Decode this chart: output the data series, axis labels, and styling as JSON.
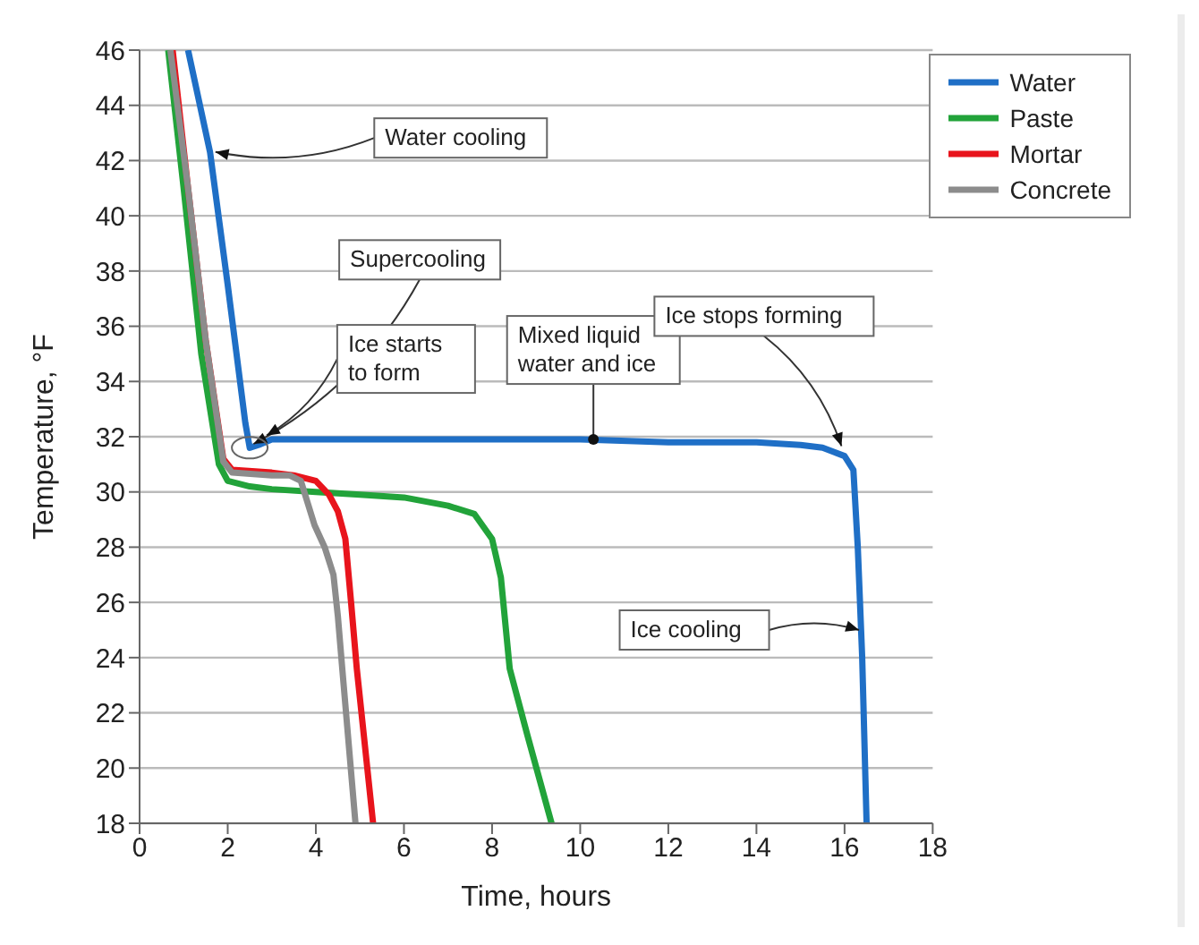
{
  "chart_data": {
    "type": "line",
    "xlabel": "Time, hours",
    "ylabel": "Temperature, °F",
    "xlim": [
      0,
      18
    ],
    "xticks": [
      0,
      2,
      4,
      6,
      8,
      10,
      12,
      14,
      16,
      18
    ],
    "ylim": [
      18,
      46
    ],
    "yticks": [
      18,
      20,
      22,
      24,
      26,
      28,
      30,
      32,
      34,
      36,
      38,
      40,
      42,
      44,
      46
    ],
    "grid": "y",
    "legend": "top right",
    "marker": "none",
    "line_style": "solid",
    "series": [
      {
        "name": "Water",
        "color": "#1f6fc6",
        "x": [
          1.1,
          1.6,
          2.0,
          2.4,
          2.5,
          2.7,
          3,
          4,
          6,
          8,
          10,
          12,
          14,
          15,
          15.5,
          16,
          16.2,
          16.3,
          16.4,
          16.5
        ],
        "values": [
          46,
          42.3,
          37.5,
          32.5,
          31.6,
          31.7,
          31.9,
          31.9,
          31.9,
          31.9,
          31.9,
          31.8,
          31.8,
          31.7,
          31.6,
          31.3,
          30.8,
          28,
          24,
          18
        ]
      },
      {
        "name": "Paste",
        "color": "#22a33a",
        "x": [
          0.65,
          1.0,
          1.4,
          1.8,
          2.0,
          2.5,
          3,
          4,
          5,
          6,
          7,
          7.6,
          8.0,
          8.2,
          8.4,
          8.8,
          9.35
        ],
        "values": [
          46,
          41,
          35,
          31.0,
          30.4,
          30.2,
          30.1,
          30.0,
          29.9,
          29.8,
          29.5,
          29.2,
          28.3,
          26.9,
          23.6,
          21.2,
          18
        ]
      },
      {
        "name": "Mortar",
        "color": "#e8141c",
        "x": [
          0.75,
          1.1,
          1.5,
          1.9,
          2.1,
          3,
          3.5,
          4,
          4.3,
          4.5,
          4.67,
          4.8,
          4.93,
          5.3
        ],
        "values": [
          46,
          41,
          35.5,
          31.2,
          30.8,
          30.7,
          30.6,
          30.4,
          29.9,
          29.3,
          28.3,
          26,
          23.6,
          18
        ]
      },
      {
        "name": "Concrete",
        "color": "#8c8c8c",
        "x": [
          0.7,
          1.1,
          1.5,
          1.9,
          2.1,
          3,
          3.4,
          3.66,
          3.97,
          4.2,
          4.4,
          4.5,
          4.6,
          4.9
        ],
        "values": [
          46,
          41,
          35.5,
          31.1,
          30.7,
          30.6,
          30.6,
          30.4,
          28.8,
          28,
          27.0,
          25.5,
          23.6,
          18
        ]
      }
    ],
    "annotations": [
      {
        "text": "Water cooling",
        "x": 1.6,
        "y": 42.3
      },
      {
        "text": "Supercooling",
        "x": 2.5,
        "y": 31.6
      },
      {
        "text": "Ice starts to form",
        "x": 2.8,
        "y": 31.9
      },
      {
        "text": "Mixed liquid water and ice",
        "x": 10.3,
        "y": 31.9
      },
      {
        "text": "Ice stops forming",
        "x": 16.0,
        "y": 31.5
      },
      {
        "text": "Ice cooling",
        "x": 16.45,
        "y": 25
      }
    ]
  }
}
